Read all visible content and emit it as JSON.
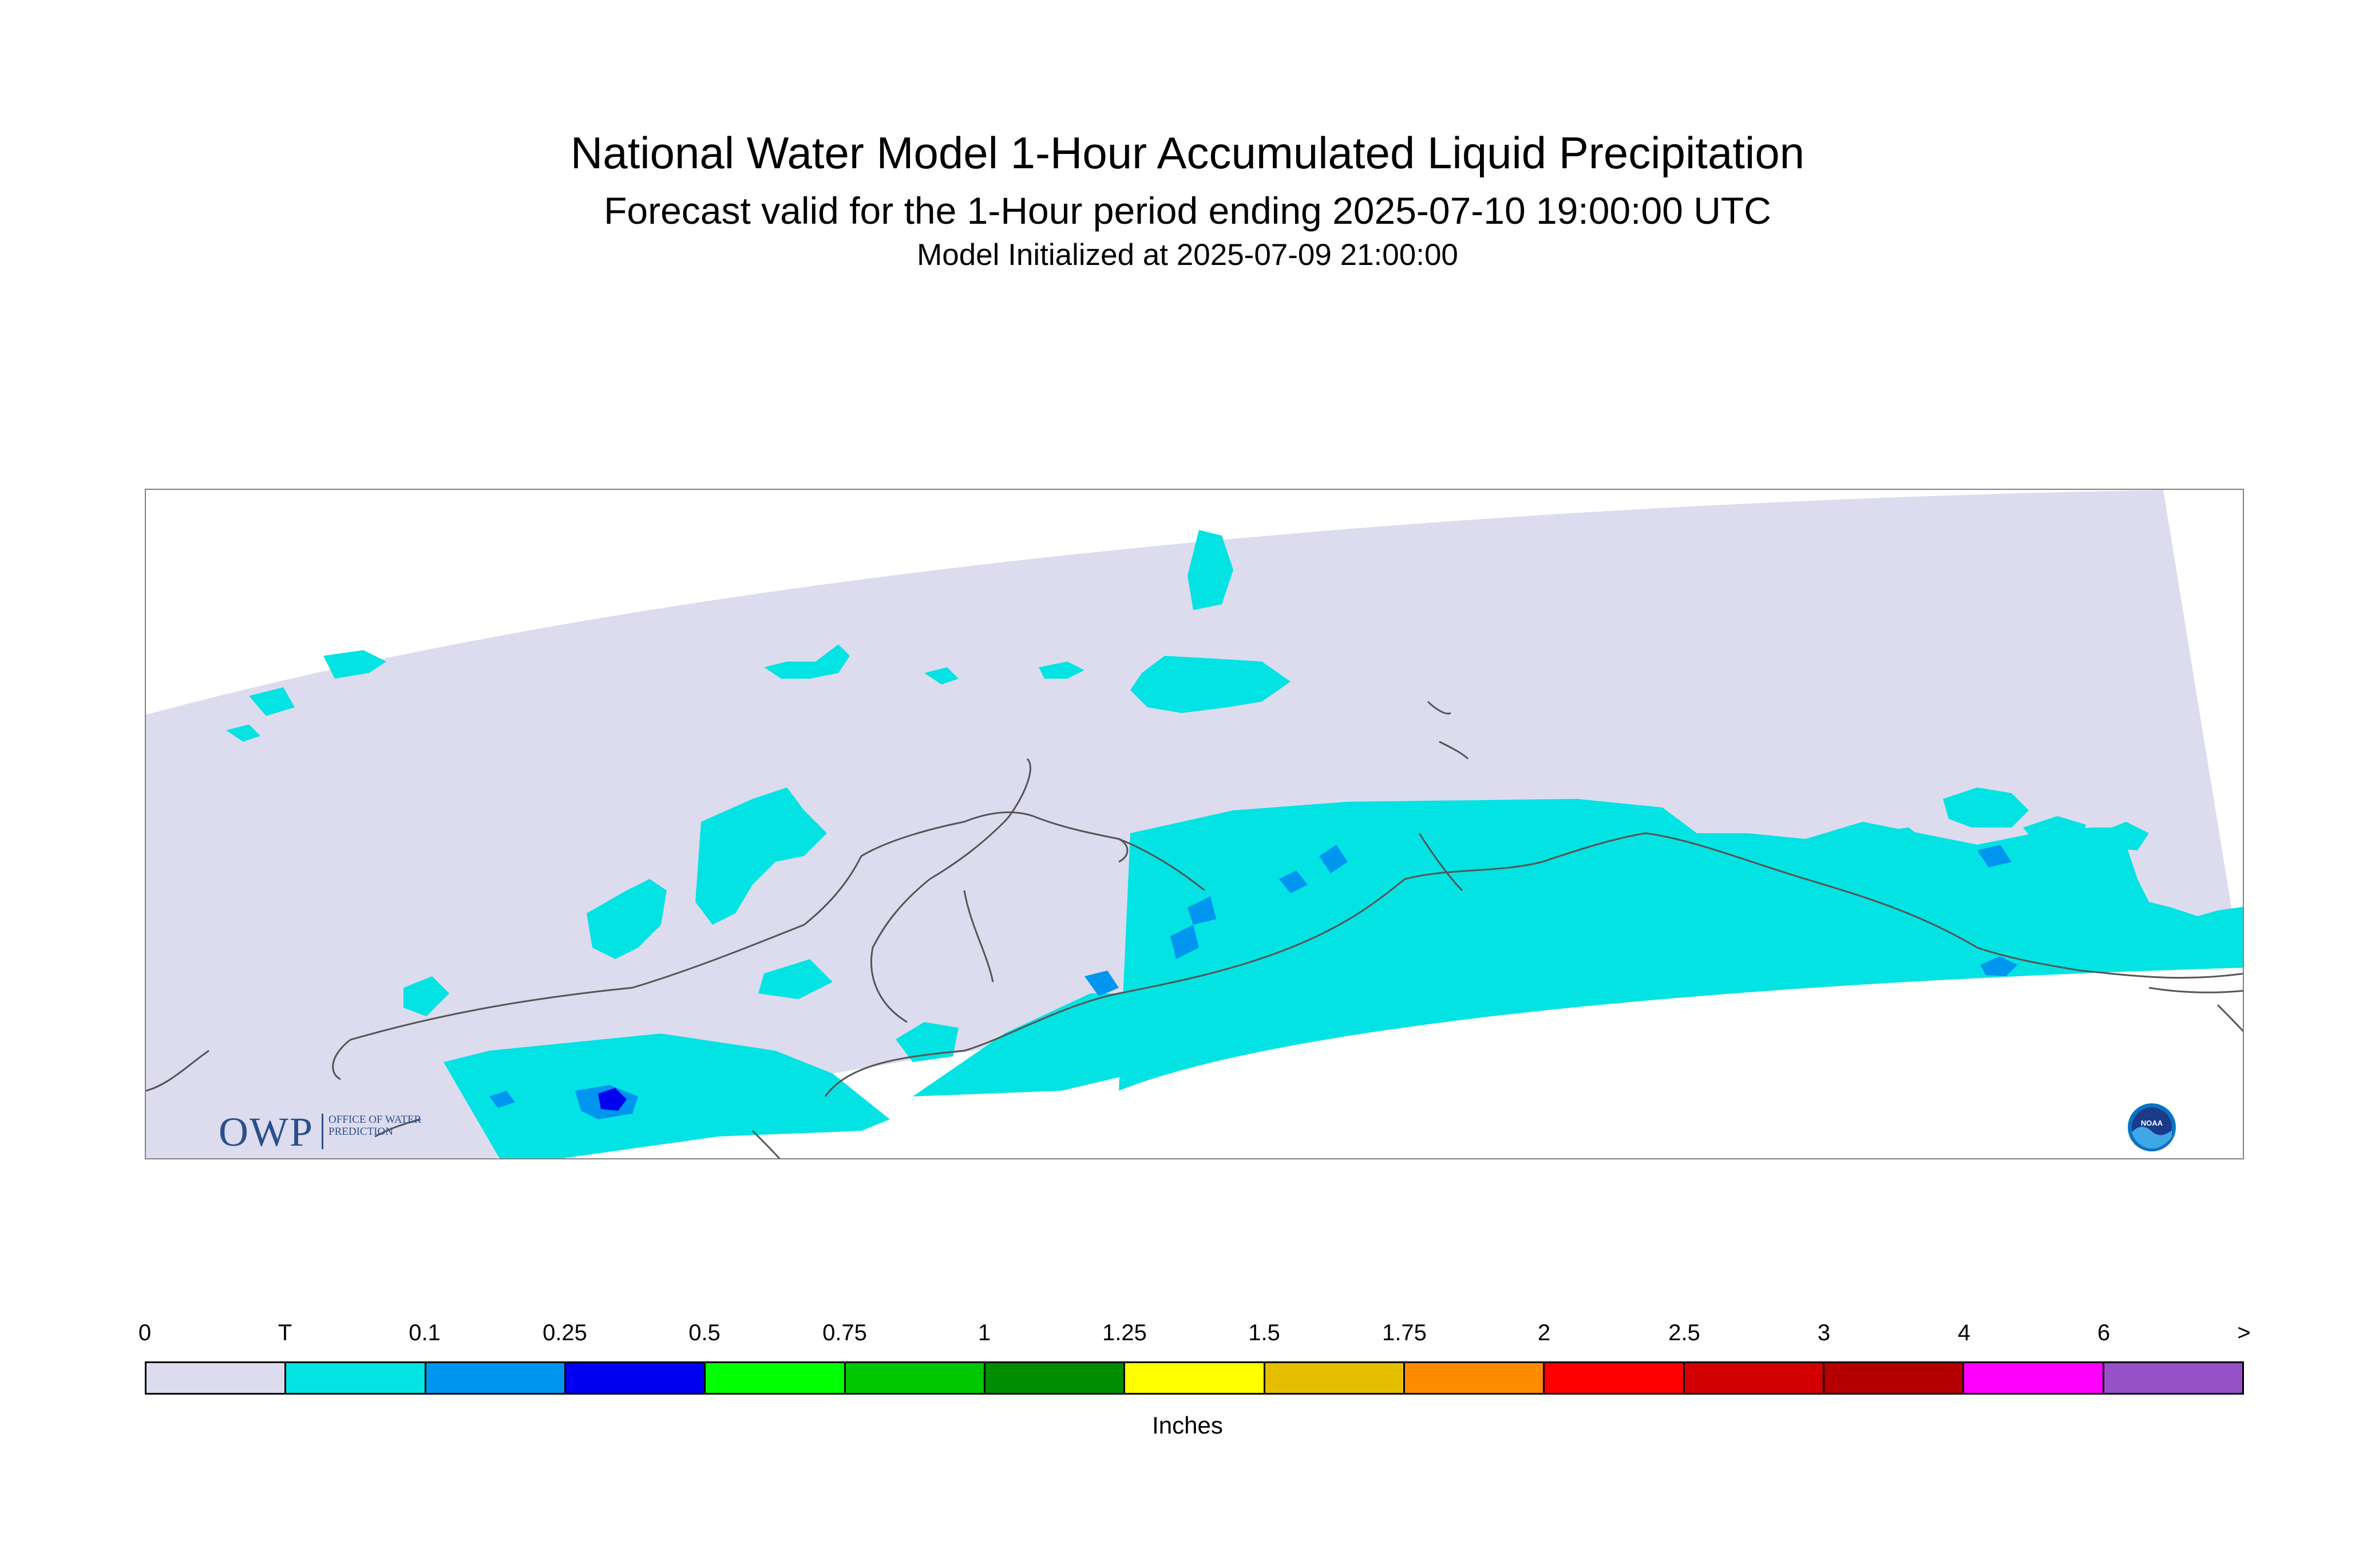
{
  "title": "National Water Model 1-Hour Accumulated Liquid Precipitation",
  "subtitle": "Forecast valid for the 1-Hour period ending 2025-07-10 19:00:00 UTC",
  "initialized": "Model Initialized at 2025-07-09 21:00:00",
  "colorbar": {
    "units": "Inches",
    "ticks": [
      "0",
      "T",
      "0.1",
      "0.25",
      "0.5",
      "0.75",
      "1",
      "1.25",
      "1.5",
      "1.75",
      "2",
      "2.5",
      "3",
      "4",
      "6",
      ">"
    ],
    "colors": [
      "#dcdcee",
      "#04e3e3",
      "#0096f0",
      "#0000f0",
      "#00ff00",
      "#00c800",
      "#008c00",
      "#ffff00",
      "#e6be00",
      "#ff8c00",
      "#ff0000",
      "#d20000",
      "#b40000",
      "#ff00ff",
      "#9650c8"
    ]
  },
  "map": {
    "background_color": "#ffffff",
    "no_precip_color": "#dcdcee",
    "trace_color": "#04e3e3",
    "light_color": "#0096f0",
    "moderate_color": "#0000f0",
    "coastline_color": "#555555"
  },
  "logos": {
    "owp": {
      "letters": "OWP",
      "text": "OFFICE OF WATER PREDICTION",
      "icon": "owp-logo-icon"
    },
    "noaa": {
      "text": "NOAA",
      "icon": "noaa-logo-icon"
    }
  }
}
